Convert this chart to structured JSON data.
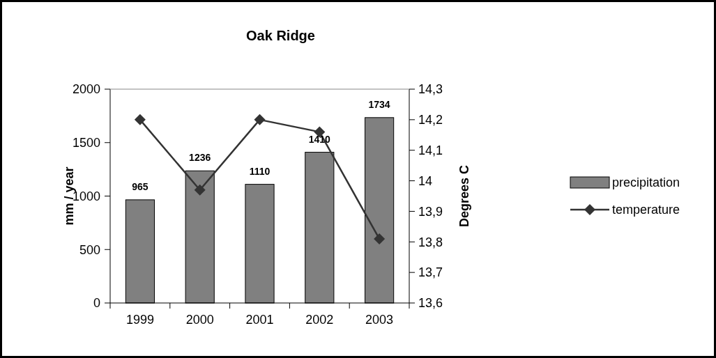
{
  "chart_data": {
    "type": "bar",
    "title": "Oak Ridge",
    "categories": [
      "1999",
      "2000",
      "2001",
      "2002",
      "2003"
    ],
    "series": [
      {
        "name": "precipitation",
        "color": "#808080",
        "values": [
          965,
          1236,
          1110,
          1410,
          1734
        ],
        "value_labels": [
          "965",
          "1236",
          "1110",
          "1410",
          "1734"
        ]
      },
      {
        "name": "temperature",
        "type": "line",
        "axis": "y2",
        "color": "#333333",
        "marker": "diamond",
        "values": [
          14.2,
          13.97,
          14.2,
          14.16,
          13.81
        ]
      }
    ],
    "ylabel": "mm / year",
    "y2label": "Degrees C",
    "ylim": [
      0,
      2000
    ],
    "yticks": [
      0,
      500,
      1000,
      1500,
      2000
    ],
    "y2lim": [
      13.6,
      14.3
    ],
    "y2ticks": [
      {
        "value": 13.6,
        "label": "13,6"
      },
      {
        "value": 13.7,
        "label": "13,7"
      },
      {
        "value": 13.8,
        "label": "13,8"
      },
      {
        "value": 13.9,
        "label": "13,9"
      },
      {
        "value": 14,
        "label": "14"
      },
      {
        "value": 14.1,
        "label": "14,1"
      },
      {
        "value": 14.2,
        "label": "14,2"
      },
      {
        "value": 14.3,
        "label": "14,3"
      }
    ],
    "legend": "right",
    "grid": false
  }
}
